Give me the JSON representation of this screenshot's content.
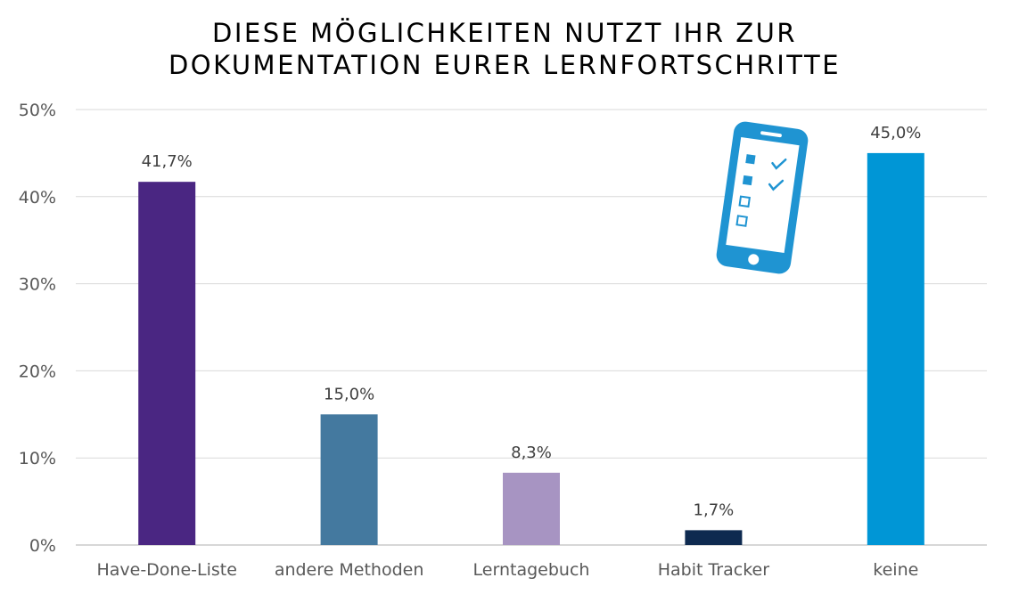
{
  "chart_data": {
    "type": "bar",
    "title_lines": [
      "DIESE MÖGLICHKEITEN NUTZT IHR ZUR",
      "DOKUMENTATION EURER LERNFORTSCHRITTE"
    ],
    "categories": [
      "Have-Done-Liste",
      "andere Methoden",
      "Lerntagebuch",
      "Habit Tracker",
      "keine"
    ],
    "values": [
      41.7,
      15.0,
      8.3,
      1.7,
      45.0
    ],
    "data_labels": [
      "41,7%",
      "15,0%",
      "8,3%",
      "1,7%",
      "45,0%"
    ],
    "bar_colors": [
      "#4a2682",
      "#44799f",
      "#a794c2",
      "#0e2a50",
      "#0096d6"
    ],
    "ylim": [
      0,
      50
    ],
    "y_ticks": [
      0,
      10,
      20,
      30,
      40,
      50
    ],
    "y_tick_labels": [
      "0%",
      "10%",
      "20%",
      "30%",
      "40%",
      "50%"
    ],
    "xlabel": "",
    "ylabel": "",
    "grid": true,
    "legend": "none",
    "decoration": {
      "icon": "smartphone-checklist-icon",
      "color": "#1f94d2"
    }
  }
}
